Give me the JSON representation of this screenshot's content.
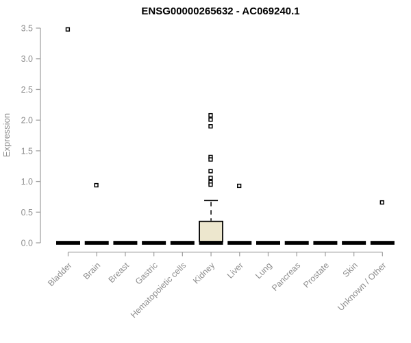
{
  "chart_data": {
    "type": "boxplot",
    "title": "ENSG00000265632 - AC069240.1",
    "ylabel": "Expression",
    "xlabel": "",
    "ylim": [
      0,
      3.5
    ],
    "yticks": [
      0.0,
      0.5,
      1.0,
      1.5,
      2.0,
      2.5,
      3.0,
      3.5
    ],
    "grid": false,
    "legend": "none",
    "categories": [
      "Bladder",
      "Brain",
      "Breast",
      "Gastric",
      "Hematopoietic cells",
      "Kidney",
      "Liver",
      "Lung",
      "Pancreas",
      "Prostate",
      "Skin",
      "Unknown / Other"
    ],
    "boxes": [
      {
        "category": "Bladder",
        "whisker_low": 0,
        "q1": 0,
        "median": 0,
        "q3": 0,
        "whisker_high": 0,
        "outliers": [
          3.48
        ]
      },
      {
        "category": "Brain",
        "whisker_low": 0,
        "q1": 0,
        "median": 0,
        "q3": 0,
        "whisker_high": 0,
        "outliers": [
          0.94
        ]
      },
      {
        "category": "Breast",
        "whisker_low": 0,
        "q1": 0,
        "median": 0,
        "q3": 0,
        "whisker_high": 0,
        "outliers": []
      },
      {
        "category": "Gastric",
        "whisker_low": 0,
        "q1": 0,
        "median": 0,
        "q3": 0,
        "whisker_high": 0,
        "outliers": []
      },
      {
        "category": "Hematopoietic cells",
        "whisker_low": 0,
        "q1": 0,
        "median": 0,
        "q3": 0,
        "whisker_high": 0,
        "outliers": []
      },
      {
        "category": "Kidney",
        "whisker_low": 0,
        "q1": 0.02,
        "median": 0,
        "q3": 0.35,
        "whisker_high": 0.69,
        "outliers": [
          2.08,
          2.01,
          1.9,
          1.4,
          1.36,
          1.17,
          1.06,
          0.99,
          0.95
        ]
      },
      {
        "category": "Liver",
        "whisker_low": 0,
        "q1": 0,
        "median": 0,
        "q3": 0,
        "whisker_high": 0,
        "outliers": [
          0.93
        ]
      },
      {
        "category": "Lung",
        "whisker_low": 0,
        "q1": 0,
        "median": 0,
        "q3": 0,
        "whisker_high": 0,
        "outliers": []
      },
      {
        "category": "Pancreas",
        "whisker_low": 0,
        "q1": 0,
        "median": 0,
        "q3": 0,
        "whisker_high": 0,
        "outliers": []
      },
      {
        "category": "Prostate",
        "whisker_low": 0,
        "q1": 0,
        "median": 0,
        "q3": 0,
        "whisker_high": 0,
        "outliers": []
      },
      {
        "category": "Skin",
        "whisker_low": 0,
        "q1": 0,
        "median": 0,
        "q3": 0,
        "whisker_high": 0,
        "outliers": []
      },
      {
        "category": "Unknown / Other",
        "whisker_low": 0,
        "q1": 0,
        "median": 0,
        "q3": 0,
        "whisker_high": 0,
        "outliers": [
          0.66
        ]
      }
    ],
    "colors": {
      "box_fill": "#EDE7CE",
      "box_stroke": "#000000",
      "median_bar": "#000000",
      "outlier_stroke": "#000000",
      "outlier_fill": "#FFFFFF",
      "axis_line": "#A3A3A3",
      "label_text": "#8E8E8E",
      "title_text": "#000000",
      "background": "#FFFFFF"
    }
  }
}
